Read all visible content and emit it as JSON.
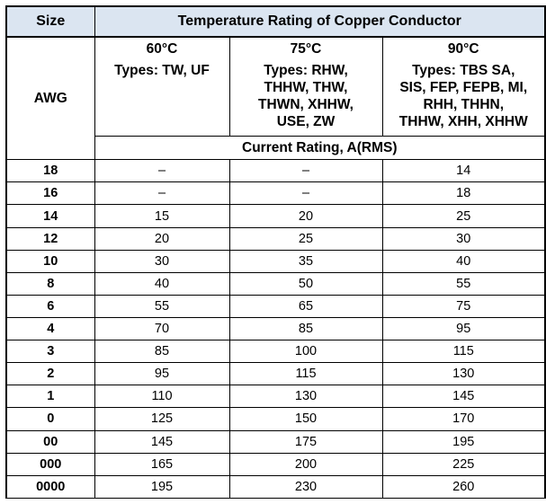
{
  "header": {
    "size_label": "Size",
    "temp_title": "Temperature Rating of Copper Conductor",
    "awg_label": "AWG",
    "current_label": "Current Rating, A(RMS)"
  },
  "temps": [
    {
      "temp": "60°C",
      "types": [
        "Types: TW, UF"
      ]
    },
    {
      "temp": "75°C",
      "types": [
        "Types: RHW,",
        "THHW, THW,",
        "THWN, XHHW,",
        "USE, ZW"
      ]
    },
    {
      "temp": "90°C",
      "types": [
        "Types: TBS SA,",
        "SIS, FEP, FEPB, MI,",
        "RHH, THHN,",
        "THHW, XHH, XHHW"
      ]
    }
  ],
  "rows": [
    {
      "awg": "18",
      "c60": "–",
      "c75": "–",
      "c90": "14"
    },
    {
      "awg": "16",
      "c60": "–",
      "c75": "–",
      "c90": "18"
    },
    {
      "awg": "14",
      "c60": "15",
      "c75": "20",
      "c90": "25"
    },
    {
      "awg": "12",
      "c60": "20",
      "c75": "25",
      "c90": "30"
    },
    {
      "awg": "10",
      "c60": "30",
      "c75": "35",
      "c90": "40"
    },
    {
      "awg": "8",
      "c60": "40",
      "c75": "50",
      "c90": "55"
    },
    {
      "awg": "6",
      "c60": "55",
      "c75": "65",
      "c90": "75"
    },
    {
      "awg": "4",
      "c60": "70",
      "c75": "85",
      "c90": "95"
    },
    {
      "awg": "3",
      "c60": "85",
      "c75": "100",
      "c90": "115"
    },
    {
      "awg": "2",
      "c60": "95",
      "c75": "115",
      "c90": "130"
    },
    {
      "awg": "1",
      "c60": "110",
      "c75": "130",
      "c90": "145"
    },
    {
      "awg": "0",
      "c60": "125",
      "c75": "150",
      "c90": "170"
    },
    {
      "awg": "00",
      "c60": "145",
      "c75": "175",
      "c90": "195"
    },
    {
      "awg": "000",
      "c60": "165",
      "c75": "200",
      "c90": "225"
    },
    {
      "awg": "0000",
      "c60": "195",
      "c75": "230",
      "c90": "260"
    }
  ],
  "colors": {
    "header_bg": "#dbe5f1",
    "border": "#000000"
  }
}
